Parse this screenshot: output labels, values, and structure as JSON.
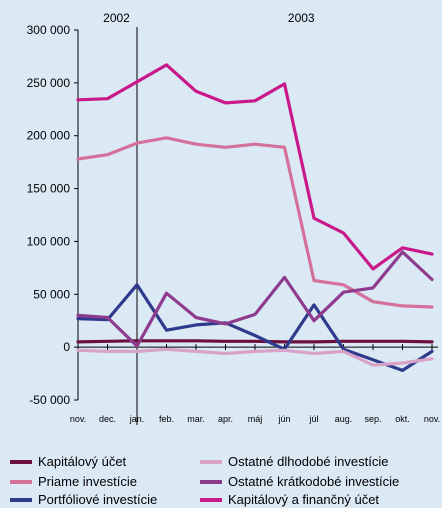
{
  "chart_data": {
    "type": "line",
    "title": "",
    "xlabel": "",
    "ylabel": "",
    "ylim": [
      -50000,
      300000
    ],
    "y_ticks": [
      "300 000",
      "250 000",
      "200 000",
      "150 000",
      "100 000",
      "50 000",
      "0",
      "-50 000"
    ],
    "y_tick_values": [
      300000,
      250000,
      200000,
      150000,
      100000,
      50000,
      0,
      -50000
    ],
    "categories": [
      "nov.",
      "dec.",
      "jan.",
      "feb.",
      "mar.",
      "apr.",
      "máj",
      "jún",
      "júl",
      "aug.",
      "sep.",
      "okt.",
      "nov."
    ],
    "year_labels": [
      {
        "label": "2002",
        "category_index": 1
      },
      {
        "label": "2003",
        "category_index": 7.5
      }
    ],
    "year_divider_index": 2,
    "grid": false,
    "legend_position": "bottom",
    "series": [
      {
        "name": "Kapitálový účet",
        "color": "#6b0f3c",
        "values": [
          5000,
          5500,
          6000,
          6000,
          6000,
          5500,
          5500,
          5000,
          5000,
          5500,
          5500,
          5500,
          5000
        ]
      },
      {
        "name": "Priame investície",
        "color": "#d4719a",
        "values": [
          178000,
          182000,
          193000,
          198000,
          192000,
          189000,
          192000,
          189000,
          63000,
          59000,
          43000,
          39000,
          38000
        ]
      },
      {
        "name": "Portfóliové investície",
        "color": "#2e3a8c",
        "values": [
          27000,
          26000,
          59000,
          16000,
          21000,
          23000,
          11000,
          -2000,
          40000,
          -2000,
          -12000,
          -22000,
          -4000
        ]
      },
      {
        "name": "Ostatné dlhodobé investície",
        "color": "#d9a3c8",
        "values": [
          -3000,
          -4000,
          -4000,
          -2000,
          -4000,
          -6000,
          -4000,
          -3000,
          -6000,
          -4000,
          -17000,
          -15000,
          -11000
        ]
      },
      {
        "name": "Ostatné krátkodobé investície",
        "color": "#8e3b8e",
        "values": [
          30000,
          28000,
          1000,
          51000,
          28000,
          22000,
          31000,
          66000,
          25000,
          52000,
          56000,
          90000,
          64000
        ]
      },
      {
        "name": "Kapitálový a finančný účet",
        "color": "#c8188a",
        "values": [
          234000,
          235000,
          251000,
          267000,
          242000,
          231000,
          233000,
          249000,
          122000,
          108000,
          74000,
          94000,
          88000
        ]
      }
    ]
  }
}
